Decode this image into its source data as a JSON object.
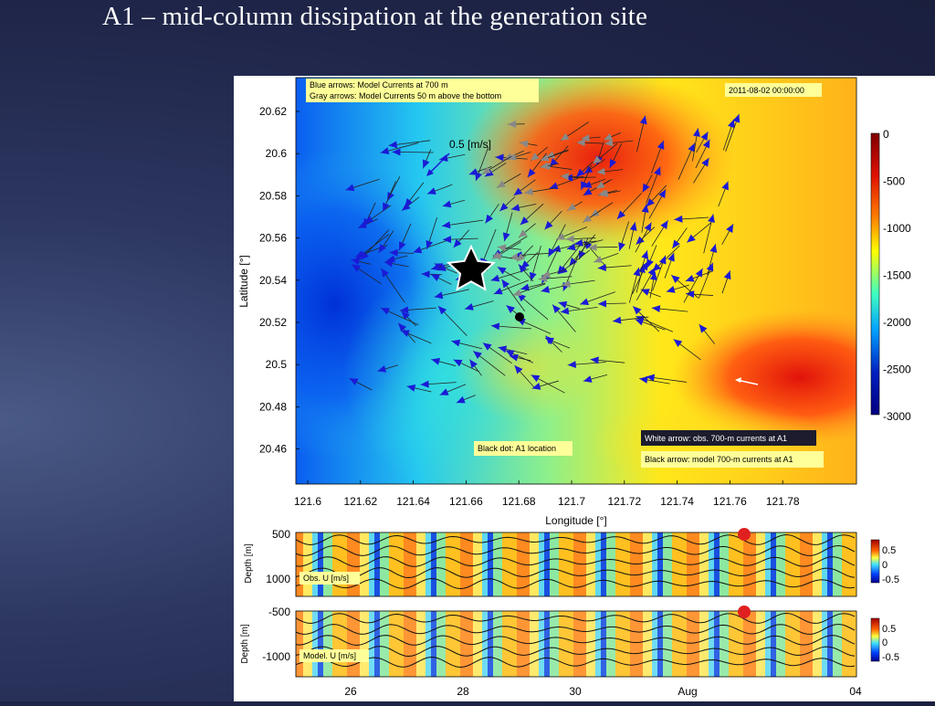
{
  "slide": {
    "title": "A1 – mid-column dissipation at the generation site"
  },
  "map": {
    "legend_line1": "Blue arrows: Model Currents at 700 m",
    "legend_line2": "Gray arrows: Model Currents 50 m above the bottom",
    "timestamp": "2011-08-02 00:00:00",
    "scale_label": "0.5 [m/s]",
    "xlabel": "Longitude [°]",
    "ylabel": "Latitude [°]",
    "x_ticks": [
      "121.6",
      "121.62",
      "121.64",
      "121.66",
      "121.68",
      "121.7",
      "121.72",
      "121.74",
      "121.76",
      "121.78"
    ],
    "y_ticks": [
      "20.62",
      "20.6",
      "20.58",
      "20.56",
      "20.54",
      "20.52",
      "20.5",
      "20.48",
      "20.46"
    ],
    "colorbar_ticks": [
      "0",
      "-500",
      "-1000",
      "-1500",
      "-2000",
      "-2500",
      "-3000"
    ],
    "colorbar_colors": [
      "#7f0000",
      "#e01000",
      "#ff8000",
      "#ffff00",
      "#40ffc0",
      "#00a0ff",
      "#0020c0",
      "#00007f"
    ],
    "note_black_dot": "Black dot: A1 location",
    "note_white_arrow": "White arrow: obs. 700-m currents at A1",
    "note_black_arrow": "Black arrow: model 700-m currents at A1",
    "arrow_colors": {
      "model_700m": "#1a1ad6",
      "model_bottom": "#888888"
    }
  },
  "obs_panel": {
    "ylabel": "Depth [m]",
    "y_ticks": [
      "500",
      "1000"
    ],
    "label": "Obs. U [m/s]",
    "cbar_ticks": [
      "0.5",
      "0",
      "-0.5"
    ]
  },
  "model_panel": {
    "ylabel": "Depth [m]",
    "y_ticks": [
      "-500",
      "-1000"
    ],
    "label": "Model. U [m/s]",
    "cbar_ticks": [
      "0.5",
      "0",
      "-0.5"
    ]
  },
  "time_axis": {
    "ticks": [
      "26",
      "28",
      "30",
      "Aug",
      "04"
    ]
  }
}
